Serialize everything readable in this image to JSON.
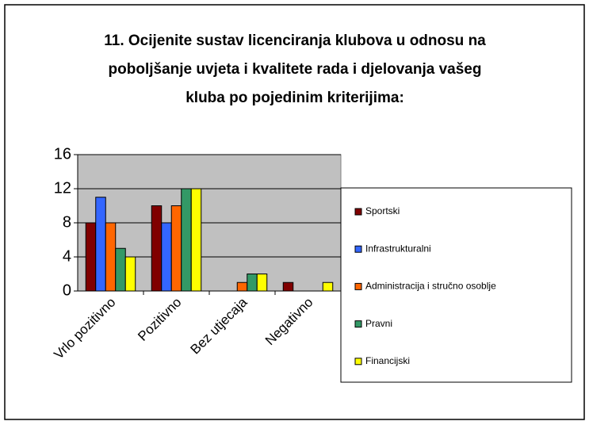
{
  "chart_data": {
    "type": "bar",
    "title": [
      "11. Ocijenite sustav licenciranja klubova u odnosu na",
      "poboljšanje uvjeta i kvalitete rada i djelovanja vašeg",
      "kluba po pojedinim kriterijima:"
    ],
    "categories": [
      "Vrlo pozitivno",
      "Pozitivno",
      "Bez utjecaja",
      "Negativno"
    ],
    "series": [
      {
        "name": "Sportski",
        "color": "#800000",
        "values": [
          8,
          10,
          0,
          1
        ]
      },
      {
        "name": "Infrastrukturalni",
        "color": "#3366ff",
        "values": [
          11,
          8,
          0,
          0
        ]
      },
      {
        "name": "Administracija i stručno osoblje",
        "color": "#ff6600",
        "values": [
          8,
          10,
          1,
          0
        ]
      },
      {
        "name": "Pravni",
        "color": "#339966",
        "values": [
          5,
          12,
          2,
          0
        ]
      },
      {
        "name": "Financijski",
        "color": "#ffff00",
        "values": [
          4,
          12,
          2,
          1
        ]
      }
    ],
    "ylim": [
      0,
      16
    ],
    "yticks": [
      0,
      4,
      8,
      12,
      16
    ],
    "grid": true,
    "legend": "right"
  }
}
